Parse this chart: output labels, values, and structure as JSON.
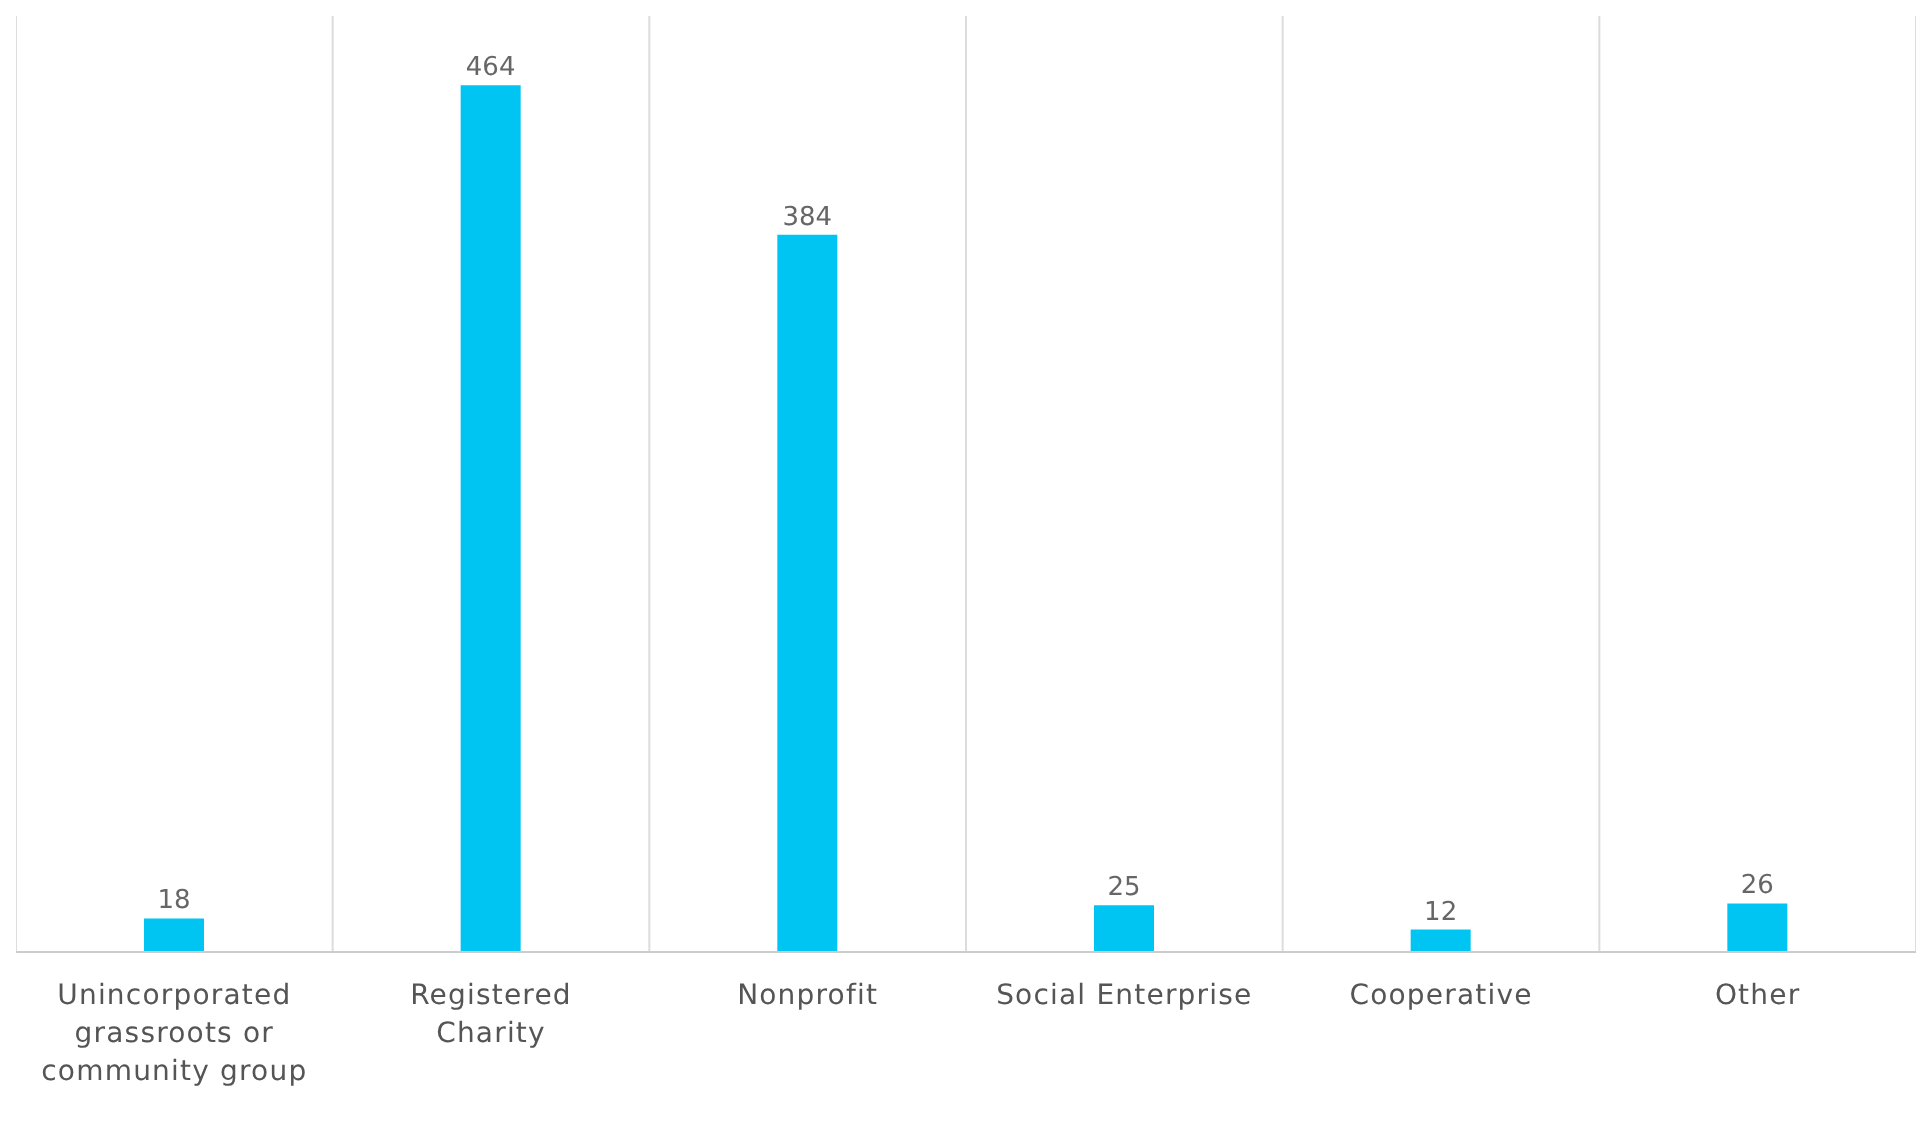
{
  "chart_data": {
    "type": "bar",
    "categories": [
      "Unincorporated grassroots or community group",
      "Registered Charity",
      "Nonprofit",
      "Social Enterprise",
      "Cooperative",
      "Other"
    ],
    "values": [
      18,
      464,
      384,
      25,
      12,
      26
    ],
    "color": "#00c5f2",
    "data_labels": true,
    "grid": "x"
  }
}
